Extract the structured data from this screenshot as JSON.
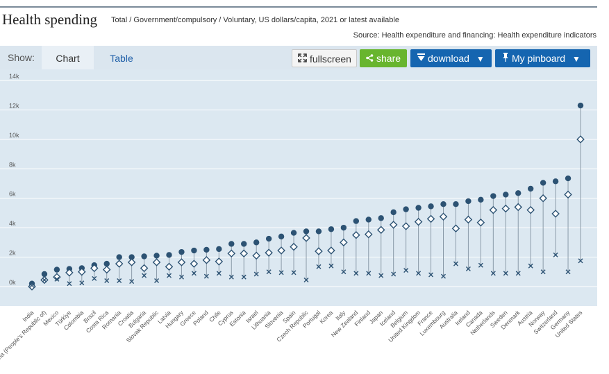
{
  "header": {
    "title": "Health spending",
    "subtitle": "Total / Government/compulsory / Voluntary, US dollars/capita, 2021 or latest available",
    "source": "Source: Health expenditure and financing: Health expenditure indicators"
  },
  "toolbar": {
    "show_label": "Show:",
    "tabs": [
      {
        "label": "Chart",
        "active": true
      },
      {
        "label": "Table",
        "active": false
      }
    ],
    "fullscreen_label": "fullscreen",
    "share_label": "share",
    "download_label": "download",
    "pinboard_label": "My pinboard",
    "colors": {
      "share": "#68b52e",
      "download": "#1565b0",
      "pinboard": "#1565b0"
    },
    "icons": [
      "fullscreen-icon",
      "share-icon",
      "download-icon",
      "pin-icon",
      "caret-down-icon"
    ]
  },
  "chart_data": {
    "type": "scatter",
    "categories": [
      "India",
      "China (People's Republic of)",
      "Mexico",
      "Türkiye",
      "Colombia",
      "Brazil",
      "Costa Rica",
      "Romania",
      "Croatia",
      "Bulgaria",
      "Slovak Republic",
      "Latvia",
      "Hungary",
      "Greece",
      "Poland",
      "Chile",
      "Cyprus",
      "Estonia",
      "Israel",
      "Lithuania",
      "Slovenia",
      "Spain",
      "Czech Republic",
      "Portugal",
      "Korea",
      "Italy",
      "New Zealand",
      "Finland",
      "Japan",
      "Iceland",
      "Belgium",
      "United Kingdom",
      "France",
      "Luxembourg",
      "Australia",
      "Ireland",
      "Canada",
      "Netherlands",
      "Sweden",
      "Denmark",
      "Austria",
      "Norway",
      "Switzerland",
      "Germany",
      "United States"
    ],
    "series": [
      {
        "marker": "dot",
        "color": "#2c5273",
        "values": [
          200,
          850,
          1150,
          1200,
          1250,
          1450,
          1550,
          2000,
          2000,
          2050,
          2100,
          2150,
          2350,
          2450,
          2500,
          2550,
          2900,
          2900,
          3000,
          3250,
          3400,
          3650,
          3750,
          3750,
          3900,
          4000,
          4450,
          4550,
          4650,
          5050,
          5250,
          5350,
          5450,
          5600,
          5600,
          5800,
          5900,
          6150,
          6250,
          6350,
          6650,
          7050,
          7150,
          7350,
          12300
        ]
      },
      {
        "marker": "diamond",
        "color": "#2c5273",
        "values": [
          0,
          450,
          650,
          950,
          1000,
          1250,
          1150,
          1550,
          1650,
          1250,
          1650,
          1350,
          1650,
          1550,
          1800,
          1700,
          2250,
          2250,
          2100,
          2300,
          2450,
          2700,
          3300,
          2400,
          2450,
          3000,
          3500,
          3550,
          3850,
          4200,
          4100,
          4400,
          4600,
          4750,
          3950,
          4550,
          4350,
          5200,
          5300,
          5400,
          5200,
          6000,
          4950,
          6250,
          10000
        ]
      },
      {
        "marker": "x",
        "color": "#2c5273",
        "values": [
          80,
          450,
          500,
          200,
          250,
          550,
          400,
          400,
          350,
          750,
          400,
          750,
          650,
          900,
          700,
          900,
          650,
          650,
          850,
          1000,
          950,
          950,
          450,
          1350,
          1400,
          1000,
          900,
          900,
          750,
          850,
          1100,
          900,
          800,
          700,
          1550,
          1200,
          1450,
          900,
          900,
          900,
          1400,
          1000,
          2150,
          1000,
          1750
        ]
      }
    ],
    "y_ticks": [
      "0k",
      "2k",
      "4k",
      "6k",
      "8k",
      "10k",
      "12k",
      "14k"
    ],
    "ylim": [
      -1200,
      14000
    ],
    "grid": true,
    "plot_background": "#dce8f1"
  }
}
